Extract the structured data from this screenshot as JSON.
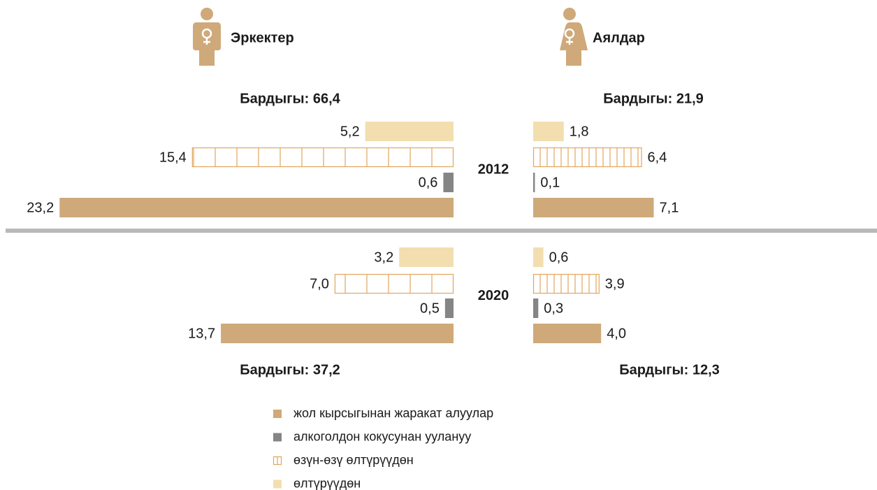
{
  "chart_data": {
    "type": "bar",
    "sides": [
      "Эркектер",
      "Аялдар"
    ],
    "years": [
      "2012",
      "2020"
    ],
    "totals": [
      [
        "Бардыгы: 66,4",
        "Бардыгы: 21,9"
      ],
      [
        "Бардыгы: 37,2",
        "Бардыгы: 12,3"
      ]
    ],
    "series": [
      {
        "name": "өлтүрүүдөн",
        "color": "#f3deb0",
        "style": "solid",
        "values": [
          [
            5.2,
            1.8
          ],
          [
            3.2,
            0.6
          ]
        ],
        "value_labels": [
          [
            "5,2",
            "1,8"
          ],
          [
            "3,2",
            "0,6"
          ]
        ]
      },
      {
        "name": "өзүн-өзү өлтүрүүдөн",
        "color": "#e3a55c",
        "style": "hatched",
        "values": [
          [
            15.4,
            6.4
          ],
          [
            7.0,
            3.9
          ]
        ],
        "value_labels": [
          [
            "15,4",
            "6,4"
          ],
          [
            "7,0",
            "3,9"
          ]
        ]
      },
      {
        "name": "алкоголдон кокусунан уулануу",
        "color": "#858585",
        "style": "solid",
        "values": [
          [
            0.6,
            0.1
          ],
          [
            0.5,
            0.3
          ]
        ],
        "value_labels": [
          [
            "0,6",
            "0,1"
          ],
          [
            "0,5",
            "0,3"
          ]
        ]
      },
      {
        "name": "жол кырсыгынан жаракат алуулар",
        "color": "#cfa97a",
        "style": "solid",
        "values": [
          [
            23.2,
            7.1
          ],
          [
            13.7,
            4.0
          ]
        ],
        "value_labels": [
          [
            "23,2",
            "7,1"
          ],
          [
            "13,7",
            "4,0"
          ]
        ]
      }
    ]
  }
}
